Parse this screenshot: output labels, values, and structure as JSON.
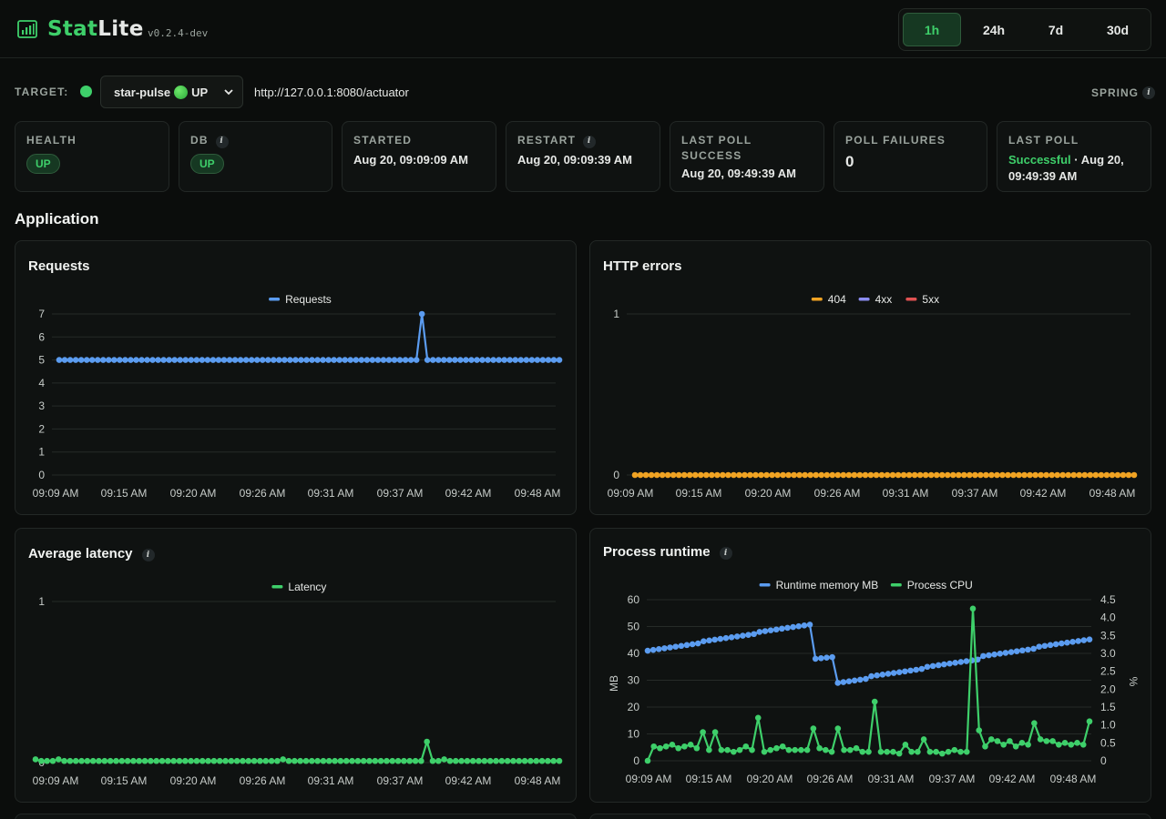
{
  "brand": {
    "name_a": "Stat",
    "name_b": "Lite",
    "version": "v0.2.4-dev",
    "logo": "bar-chart-icon"
  },
  "range": {
    "options": [
      "1h",
      "24h",
      "7d",
      "30d"
    ],
    "active": "1h"
  },
  "target": {
    "label": "TARGET:",
    "selected_name": "star-pulse",
    "selected_status": "UP",
    "url": "http://127.0.0.1:8080/actuator",
    "framework": "SPRING"
  },
  "cards": {
    "health": {
      "label": "HEALTH",
      "badge": "UP"
    },
    "db": {
      "label": "DB",
      "badge": "UP"
    },
    "started": {
      "label": "STARTED",
      "value": "Aug 20, 09:09:09 AM"
    },
    "restart": {
      "label": "RESTART",
      "value": "Aug 20, 09:09:39 AM"
    },
    "last_poll_success": {
      "label_1": "LAST POLL",
      "label_2": "SUCCESS",
      "value": "Aug 20, 09:49:39 AM"
    },
    "poll_failures": {
      "label": "POLL FAILURES",
      "value": "0"
    },
    "last_poll": {
      "label": "LAST POLL",
      "status": "Successful",
      "sep": " · ",
      "value_1": "Aug 20,",
      "value_2": "09:49:39 AM"
    }
  },
  "section_title": "Application",
  "colors": {
    "accent": "#3ecf6a",
    "blue": "#5b9cf0",
    "orange": "#f0a323",
    "purple": "#8b8cf0",
    "red": "#e05252"
  },
  "chart_data": [
    {
      "id": "requests",
      "title": "Requests",
      "type": "line",
      "x_ticks": [
        "09:09 AM",
        "09:15 AM",
        "09:20 AM",
        "09:26 AM",
        "09:31 AM",
        "09:37 AM",
        "09:42 AM",
        "09:48 AM"
      ],
      "y_ticks": [
        0,
        1,
        2,
        3,
        4,
        5,
        6,
        7
      ],
      "ylim": [
        0,
        7
      ],
      "series": [
        {
          "name": "Requests",
          "color": "#5b9cf0",
          "values": [
            5,
            5,
            5,
            5,
            5,
            5,
            5,
            5,
            5,
            5,
            5,
            5,
            5,
            5,
            5,
            5,
            5,
            5,
            5,
            5,
            5,
            5,
            5,
            5,
            5,
            5,
            5,
            5,
            5,
            5,
            5,
            5,
            5,
            5,
            5,
            5,
            5,
            5,
            5,
            5,
            5,
            5,
            5,
            5,
            5,
            5,
            5,
            5,
            5,
            5,
            5,
            5,
            5,
            5,
            5,
            5,
            5,
            5,
            5,
            5,
            5,
            5,
            5,
            5,
            5,
            5,
            7,
            5,
            5,
            5,
            5,
            5,
            5,
            5,
            5,
            5,
            5,
            5,
            5,
            5,
            5,
            5,
            5,
            5,
            5,
            5,
            5,
            5,
            5,
            5,
            5,
            5
          ]
        }
      ]
    },
    {
      "id": "http-errors",
      "title": "HTTP errors",
      "type": "line",
      "x_ticks": [
        "09:09 AM",
        "09:15 AM",
        "09:20 AM",
        "09:26 AM",
        "09:31 AM",
        "09:37 AM",
        "09:42 AM",
        "09:48 AM"
      ],
      "y_ticks": [
        0,
        1
      ],
      "ylim": [
        0,
        1
      ],
      "series": [
        {
          "name": "404",
          "color": "#f0a323",
          "values": [
            0,
            0,
            0,
            0,
            0,
            0,
            0,
            0,
            0,
            0,
            0,
            0,
            0,
            0,
            0,
            0,
            0,
            0,
            0,
            0,
            0,
            0,
            0,
            0,
            0,
            0,
            0,
            0,
            0,
            0,
            0,
            0,
            0,
            0,
            0,
            0,
            0,
            0,
            0,
            0,
            0,
            0,
            0,
            0,
            0,
            0,
            0,
            0,
            0,
            0,
            0,
            0,
            0,
            0,
            0,
            0,
            0,
            0,
            0,
            0,
            0,
            0,
            0,
            0,
            0,
            0,
            0,
            0,
            0,
            0,
            0,
            0,
            0,
            0,
            0,
            0,
            0,
            0,
            0,
            0,
            0,
            0,
            0,
            0,
            0,
            0,
            0,
            0,
            0,
            0,
            0,
            0
          ]
        },
        {
          "name": "4xx",
          "color": "#8b8cf0",
          "values": []
        },
        {
          "name": "5xx",
          "color": "#e05252",
          "values": []
        }
      ]
    },
    {
      "id": "latency",
      "title": "Average latency",
      "type": "line",
      "x_ticks": [
        "09:09 AM",
        "09:15 AM",
        "09:20 AM",
        "09:26 AM",
        "09:31 AM",
        "09:37 AM",
        "09:42 AM",
        "09:48 AM"
      ],
      "y_ticks": [
        0,
        1
      ],
      "ylim": [
        0,
        1
      ],
      "series": [
        {
          "name": "Latency",
          "color": "#3ecf6a",
          "values": [
            0.02,
            0.01,
            0.01,
            0.01,
            0.02,
            0.01,
            0.01,
            0.01,
            0.01,
            0.01,
            0.01,
            0.01,
            0.01,
            0.01,
            0.01,
            0.01,
            0.01,
            0.01,
            0.01,
            0.01,
            0.01,
            0.01,
            0.01,
            0.01,
            0.01,
            0.01,
            0.01,
            0.01,
            0.01,
            0.01,
            0.01,
            0.01,
            0.01,
            0.01,
            0.01,
            0.01,
            0.01,
            0.01,
            0.01,
            0.01,
            0.01,
            0.01,
            0.01,
            0.02,
            0.01,
            0.01,
            0.01,
            0.01,
            0.01,
            0.01,
            0.01,
            0.01,
            0.01,
            0.01,
            0.01,
            0.01,
            0.01,
            0.01,
            0.01,
            0.01,
            0.01,
            0.01,
            0.01,
            0.01,
            0.01,
            0.01,
            0.01,
            0.01,
            0.13,
            0.01,
            0.01,
            0.02,
            0.01,
            0.01,
            0.01,
            0.01,
            0.01,
            0.01,
            0.01,
            0.01,
            0.01,
            0.01,
            0.01,
            0.01,
            0.01,
            0.01,
            0.01,
            0.01,
            0.01,
            0.01,
            0.01,
            0.01
          ]
        }
      ]
    },
    {
      "id": "process-runtime",
      "title": "Process runtime",
      "type": "line",
      "x_ticks": [
        "09:09 AM",
        "09:15 AM",
        "09:20 AM",
        "09:26 AM",
        "09:31 AM",
        "09:37 AM",
        "09:42 AM",
        "09:48 AM"
      ],
      "y_ticks": [
        0,
        10,
        20,
        30,
        40,
        50,
        60
      ],
      "y2_ticks": [
        "0",
        "0.5",
        "1.0",
        "1.5",
        "2.0",
        "2.5",
        "3.0",
        "3.5",
        "4.0",
        "4.5"
      ],
      "ylim": [
        0,
        60
      ],
      "y2lim": [
        0,
        4.5
      ],
      "ylabel": "MB",
      "y2label": "%",
      "series": [
        {
          "name": "Runtime memory MB",
          "color": "#5b9cf0",
          "axis": "left",
          "values": [
            41,
            41.3,
            41.6,
            41.9,
            42.2,
            42.5,
            42.8,
            43.1,
            43.4,
            43.7,
            44.5,
            44.8,
            45.1,
            45.4,
            45.7,
            46,
            46.3,
            46.6,
            46.9,
            47.2,
            48,
            48.3,
            48.6,
            48.9,
            49.2,
            49.5,
            49.8,
            50.1,
            50.4,
            50.7,
            38,
            38.2,
            38.4,
            38.6,
            29,
            29.3,
            29.6,
            29.9,
            30.2,
            30.5,
            31.5,
            31.8,
            32.1,
            32.4,
            32.7,
            33,
            33.3,
            33.6,
            33.9,
            34.2,
            35,
            35.3,
            35.6,
            35.9,
            36.2,
            36.5,
            36.8,
            37.1,
            37.4,
            37.7,
            39,
            39.3,
            39.6,
            39.9,
            40.2,
            40.5,
            40.8,
            41.1,
            41.4,
            41.7,
            42.5,
            42.8,
            43.1,
            43.4,
            43.7,
            44,
            44.3,
            44.6,
            44.9,
            45.2
          ]
        },
        {
          "name": "Process CPU",
          "color": "#3ecf6a",
          "axis": "right",
          "values": [
            0,
            0.4,
            0.35,
            0.4,
            0.45,
            0.35,
            0.4,
            0.45,
            0.35,
            0.8,
            0.3,
            0.8,
            0.3,
            0.3,
            0.25,
            0.3,
            0.4,
            0.3,
            1.2,
            0.25,
            0.3,
            0.35,
            0.4,
            0.3,
            0.3,
            0.3,
            0.3,
            0.9,
            0.35,
            0.3,
            0.25,
            0.9,
            0.3,
            0.3,
            0.35,
            0.25,
            0.25,
            1.65,
            0.25,
            0.25,
            0.25,
            0.2,
            0.45,
            0.25,
            0.25,
            0.6,
            0.25,
            0.25,
            0.2,
            0.25,
            0.3,
            0.25,
            0.25,
            4.25,
            0.85,
            0.4,
            0.6,
            0.55,
            0.45,
            0.55,
            0.4,
            0.5,
            0.45,
            1.05,
            0.6,
            0.55,
            0.55,
            0.45,
            0.5,
            0.45,
            0.5,
            0.45,
            1.1
          ]
        }
      ]
    }
  ]
}
